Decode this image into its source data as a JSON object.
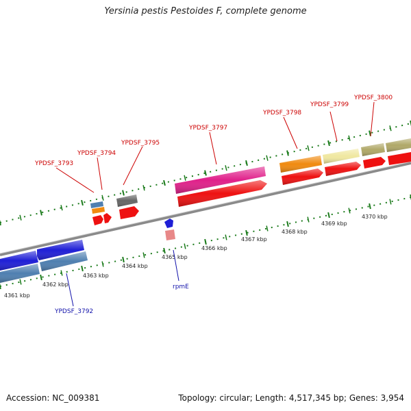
{
  "title": "Yersinia pestis Pestoides F, complete genome",
  "accession": "Accession: NC_009381",
  "topology": "Topology: circular; Length: 4,517,345 bp; Genes: 3,954",
  "colors": {
    "cds": "#ee1111",
    "label_forward": "#cc0000",
    "label_reverse": "#1111aa",
    "backbone": "#8a8a8a",
    "ticks": "#1a7a1a",
    "gene_blue": "#1f1fd6",
    "gene_steel": "#4f7fb0",
    "gene_orange": "#f08a10",
    "gene_gray": "#666666",
    "gene_pink": "#e0208a",
    "gene_yellow": "#f0e8a0",
    "gene_olive": "#b0a868",
    "gene_rose": "#e88888"
  },
  "ruler": {
    "unit": "kbp",
    "ticks": [
      "4361 kbp",
      "4362 kbp",
      "4363 kbp",
      "4364 kbp",
      "4365 kbp",
      "4366 kbp",
      "4367 kbp",
      "4368 kbp",
      "4369 kbp",
      "4370 kbp"
    ]
  },
  "gene_labels": [
    {
      "name": "YPDSF_3793",
      "strand": "forward"
    },
    {
      "name": "YPDSF_3794",
      "strand": "forward"
    },
    {
      "name": "YPDSF_3795",
      "strand": "forward"
    },
    {
      "name": "YPDSF_3797",
      "strand": "forward"
    },
    {
      "name": "YPDSF_3798",
      "strand": "forward"
    },
    {
      "name": "YPDSF_3799",
      "strand": "forward"
    },
    {
      "name": "YPDSF_3800",
      "strand": "forward"
    },
    {
      "name": "YPDSF_3792",
      "strand": "reverse"
    },
    {
      "name": "rpmE",
      "strand": "reverse"
    }
  ]
}
